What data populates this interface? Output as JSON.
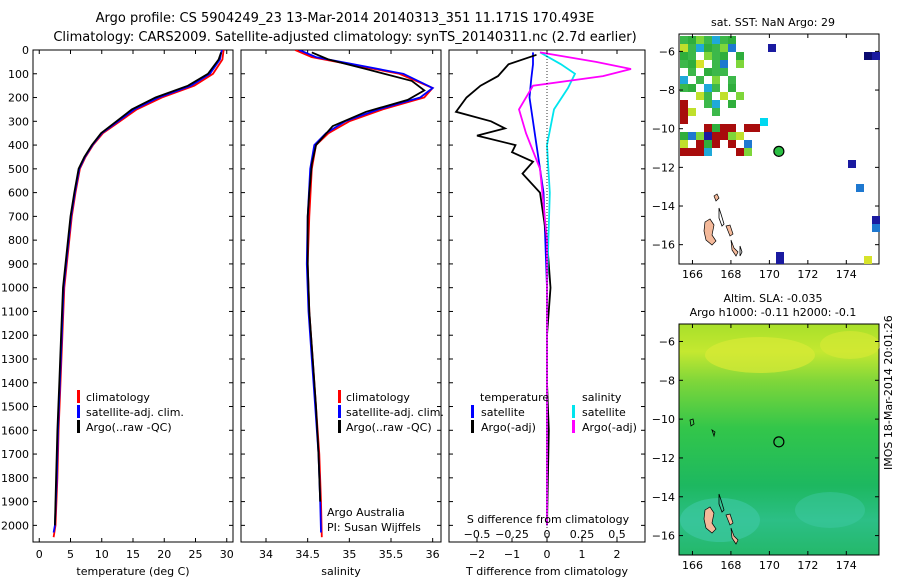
{
  "header": {
    "line1": "Argo profile: CS 5904249_23 13-Mar-2014 20140313_351 11.171S 170.493E",
    "line2": "Climatology: CARS2009. Satellite-adjusted climatology: synTS_20140311.nc (2.7d earlier)"
  },
  "watermark": "IMOS 18-Mar-2014 20:01:26",
  "chart_data": [
    {
      "id": "temperature",
      "type": "line",
      "xlabel": "temperature (deg C)",
      "xlim": [
        -1,
        31
      ],
      "xticks": [
        0,
        5,
        10,
        15,
        20,
        25,
        30
      ],
      "ylim": [
        0,
        2070
      ],
      "yticks": [
        0,
        100,
        200,
        300,
        400,
        500,
        600,
        700,
        800,
        900,
        1000,
        1100,
        1200,
        1300,
        1400,
        1500,
        1600,
        1700,
        1800,
        1900,
        2000
      ],
      "legend": [
        "climatology",
        "satellite-adj. clim.",
        "Argo(..raw -QC)"
      ],
      "legend_placement": "lower-center",
      "series": [
        {
          "name": "climatology",
          "color": "#ff0000",
          "x": [
            29.5,
            29.3,
            27.8,
            24.8,
            19.6,
            15.6,
            10.2,
            8.6,
            7.4,
            6.5,
            5.8,
            5.2,
            4.8,
            4.4,
            4.0,
            3.7,
            3.4,
            3.1,
            2.9,
            2.6,
            2.3
          ],
          "y": [
            0,
            40,
            100,
            150,
            200,
            250,
            350,
            400,
            450,
            500,
            600,
            700,
            800,
            900,
            1000,
            1200,
            1400,
            1600,
            1800,
            2000,
            2050
          ]
        },
        {
          "name": "satellite-adj. clim.",
          "color": "#0000ff",
          "x": [
            29.2,
            28.9,
            27.3,
            24.3,
            19.1,
            15.2,
            10.0,
            8.5,
            7.3,
            6.4,
            5.7,
            5.1,
            4.7,
            4.3,
            3.9,
            3.6,
            3.3,
            3.0,
            2.8,
            2.5,
            2.3
          ],
          "y": [
            0,
            40,
            100,
            150,
            200,
            250,
            350,
            400,
            450,
            500,
            600,
            700,
            800,
            900,
            1000,
            1200,
            1400,
            1600,
            1800,
            2000,
            2030
          ]
        },
        {
          "name": "Argo(..raw -QC)",
          "color": "#000000",
          "x": [
            29.1,
            28.7,
            27.0,
            23.8,
            18.6,
            14.8,
            9.9,
            8.4,
            7.2,
            6.3,
            5.6,
            5.0,
            4.6,
            4.2,
            3.8,
            3.5,
            3.2,
            2.9,
            2.7,
            2.5
          ],
          "y": [
            10,
            40,
            100,
            150,
            200,
            250,
            350,
            400,
            450,
            500,
            600,
            700,
            800,
            900,
            1000,
            1200,
            1400,
            1600,
            1800,
            2000
          ]
        }
      ]
    },
    {
      "id": "salinity",
      "type": "line",
      "xlabel": "salinity",
      "xlim": [
        33.7,
        36.1
      ],
      "xticks": [
        34,
        34.5,
        35,
        35.5,
        36
      ],
      "ylim": [
        0,
        2070
      ],
      "legend": [
        "climatology",
        "satellite-adj. clim.",
        "Argo(..raw -QC)"
      ],
      "legend_placement": "lower-center",
      "annotation": [
        "Argo Australia",
        "PI: Susan Wijffels"
      ],
      "series": [
        {
          "name": "climatology",
          "color": "#ff0000",
          "x": [
            34.35,
            34.55,
            35.0,
            35.6,
            36.0,
            35.9,
            35.4,
            35.0,
            34.75,
            34.6,
            34.55,
            34.52,
            34.5,
            34.52,
            34.56,
            34.6,
            34.64,
            34.66,
            34.67
          ],
          "y": [
            0,
            30,
            60,
            100,
            160,
            200,
            250,
            300,
            350,
            400,
            500,
            700,
            900,
            1100,
            1300,
            1500,
            1700,
            1900,
            2050
          ]
        },
        {
          "name": "satellite-adj. clim.",
          "color": "#0000ff",
          "x": [
            34.4,
            34.6,
            35.05,
            35.65,
            36.0,
            35.85,
            35.35,
            34.95,
            34.72,
            34.58,
            34.53,
            34.5,
            34.49,
            34.51,
            34.55,
            34.59,
            34.63,
            34.65,
            34.66
          ],
          "y": [
            0,
            30,
            60,
            100,
            160,
            200,
            250,
            300,
            350,
            400,
            500,
            700,
            900,
            1100,
            1300,
            1500,
            1700,
            1900,
            2030
          ]
        },
        {
          "name": "Argo(..raw -QC)",
          "color": "#000000",
          "x": [
            34.55,
            34.75,
            35.2,
            35.75,
            35.9,
            35.7,
            35.2,
            34.8,
            34.6,
            34.55,
            34.52,
            34.5,
            34.5,
            34.52,
            34.56,
            34.6,
            34.63,
            34.65
          ],
          "y": [
            10,
            40,
            80,
            130,
            170,
            210,
            260,
            320,
            400,
            480,
            600,
            700,
            900,
            1100,
            1300,
            1500,
            1700,
            1900
          ]
        }
      ]
    },
    {
      "id": "difference",
      "type": "line",
      "xlabel": "T difference from climatology",
      "x2label": "S difference from climatology",
      "xlim": [
        -2.8,
        2.8
      ],
      "xticks": [
        -2,
        -1,
        0,
        1,
        2
      ],
      "x2lim": [
        -0.7,
        0.7
      ],
      "x2ticks": [
        -0.5,
        -0.25,
        0,
        0.25,
        0.5
      ],
      "ylim": [
        0,
        2070
      ],
      "legend_groups": [
        {
          "title": "temperature",
          "items": [
            "satellite",
            "Argo(-adj)"
          ]
        },
        {
          "title": "salinity",
          "items": [
            "satellite",
            "Argo(-adj)"
          ]
        }
      ],
      "series": [
        {
          "name": "temperature satellite",
          "color": "#0000ff",
          "x": [
            -0.4,
            -0.4,
            -0.45,
            -0.5,
            -0.4,
            -0.3,
            -0.2,
            -0.1,
            -0.05,
            0.0,
            0.0,
            0.0
          ],
          "y": [
            10,
            60,
            120,
            200,
            300,
            400,
            500,
            600,
            800,
            1000,
            1500,
            2000
          ]
        },
        {
          "name": "temperature Argo(-adj)",
          "color": "#000000",
          "x": [
            -0.3,
            -1.1,
            -1.4,
            -1.9,
            -2.3,
            -2.6,
            -1.6,
            -1.2,
            -2.0,
            -0.9,
            -1.0,
            -0.4,
            -0.7,
            -0.2,
            -0.1,
            0.0,
            0.1,
            0.0,
            0.0,
            0.05,
            0.0
          ],
          "y": [
            20,
            60,
            110,
            150,
            200,
            260,
            300,
            330,
            360,
            400,
            430,
            470,
            520,
            600,
            700,
            800,
            1000,
            1200,
            1400,
            1600,
            2000
          ]
        },
        {
          "name": "salinity satellite",
          "color": "#00e5ee",
          "x": [
            -0.05,
            0.1,
            0.2,
            0.15,
            0.05,
            0.0,
            0.02,
            0.0,
            0.0,
            0.0
          ],
          "y": [
            10,
            60,
            100,
            160,
            250,
            400,
            600,
            1000,
            1500,
            2000
          ]
        },
        {
          "name": "salinity Argo(-adj)",
          "color": "#ff00ff",
          "x": [
            -0.05,
            0.35,
            0.6,
            0.4,
            -0.1,
            -0.2,
            -0.15,
            -0.05,
            0.0,
            0.0,
            0.0
          ],
          "y": [
            10,
            50,
            80,
            110,
            150,
            250,
            350,
            500,
            800,
            1400,
            2000
          ]
        }
      ]
    },
    {
      "id": "sst-map",
      "type": "heatmap",
      "title": "sat. SST: NaN  Argo: 29",
      "xlim": [
        165.3,
        175.7
      ],
      "ylim": [
        -17,
        -5.1
      ],
      "xticks": [
        166,
        168,
        170,
        172,
        174
      ],
      "yticks": [
        -6,
        -8,
        -10,
        -12,
        -14,
        -16
      ],
      "argo_position": [
        170.493,
        -11.171
      ]
    },
    {
      "id": "sla-map",
      "type": "heatmap",
      "title": "Altim. SLA: -0.035",
      "subtitle": "Argo h1000: -0.11 h2000: -0.1",
      "xlim": [
        165.3,
        175.7
      ],
      "ylim": [
        -17,
        -5.1
      ],
      "xticks": [
        166,
        168,
        170,
        172,
        174
      ],
      "yticks": [
        -6,
        -8,
        -10,
        -12,
        -14,
        -16
      ],
      "argo_position": [
        170.493,
        -11.171
      ]
    }
  ]
}
